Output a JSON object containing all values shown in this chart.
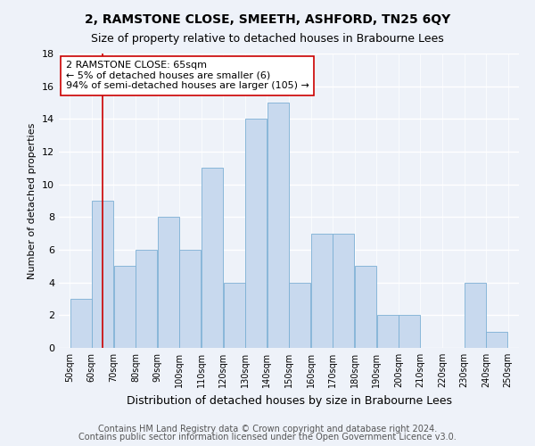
{
  "title": "2, RAMSTONE CLOSE, SMEETH, ASHFORD, TN25 6QY",
  "subtitle": "Size of property relative to detached houses in Brabourne Lees",
  "xlabel": "Distribution of detached houses by size in Brabourne Lees",
  "ylabel": "Number of detached properties",
  "bar_edges": [
    50,
    60,
    70,
    80,
    90,
    100,
    110,
    120,
    130,
    140,
    150,
    160,
    170,
    180,
    190,
    200,
    210,
    220,
    230,
    240,
    250
  ],
  "bar_heights": [
    3,
    9,
    5,
    6,
    8,
    6,
    11,
    4,
    14,
    15,
    4,
    7,
    7,
    5,
    2,
    2,
    0,
    0,
    4,
    1,
    0
  ],
  "bar_color": "#c8d9ee",
  "bar_edgecolor": "#7bafd4",
  "vline_x": 65,
  "vline_color": "#cc0000",
  "annotation_text": "2 RAMSTONE CLOSE: 65sqm\n← 5% of detached houses are smaller (6)\n94% of semi-detached houses are larger (105) →",
  "annotation_box_edgecolor": "#cc0000",
  "annotation_box_facecolor": "#ffffff",
  "ylim": [
    0,
    18
  ],
  "yticks": [
    0,
    2,
    4,
    6,
    8,
    10,
    12,
    14,
    16,
    18
  ],
  "tick_labels": [
    "50sqm",
    "60sqm",
    "70sqm",
    "80sqm",
    "90sqm",
    "100sqm",
    "110sqm",
    "120sqm",
    "130sqm",
    "140sqm",
    "150sqm",
    "160sqm",
    "170sqm",
    "180sqm",
    "190sqm",
    "200sqm",
    "210sqm",
    "220sqm",
    "230sqm",
    "240sqm",
    "250sqm"
  ],
  "footer1": "Contains HM Land Registry data © Crown copyright and database right 2024.",
  "footer2": "Contains public sector information licensed under the Open Government Licence v3.0.",
  "bg_color": "#eef2f9",
  "plot_bg_color": "#eef2f9",
  "grid_color": "#ffffff",
  "title_fontsize": 10,
  "subtitle_fontsize": 9,
  "xlabel_fontsize": 9,
  "ylabel_fontsize": 8,
  "footer_fontsize": 7,
  "annotation_fontsize": 8
}
